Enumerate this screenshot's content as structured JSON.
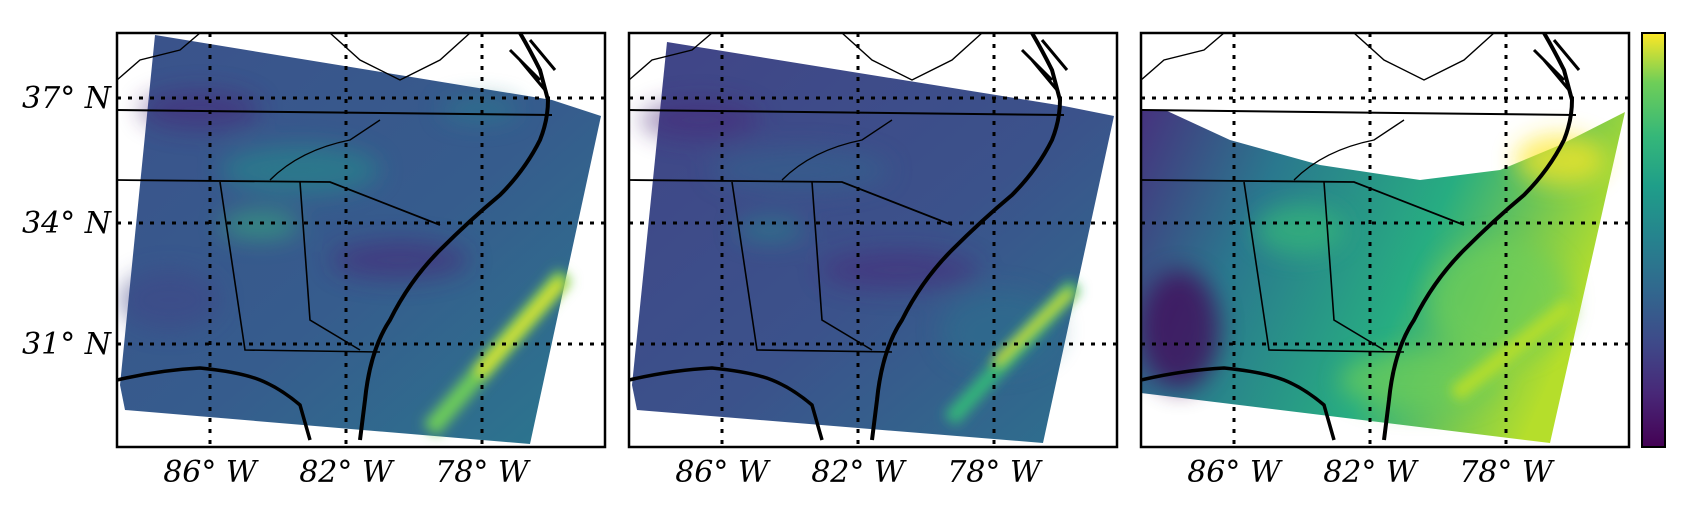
{
  "figure": {
    "panel_count": 3,
    "lat_labels": [
      "37° N",
      "34° N",
      "31° N"
    ],
    "lon_labels": [
      "86° W",
      "82° W",
      "78° W"
    ],
    "colormap": "viridis",
    "colors": {
      "viridis_low": "#440154",
      "viridis_mid": "#21918c",
      "viridis_high": "#fde725",
      "field_base_1": "#3b528b",
      "field_base_3": "#2a788e",
      "gridline": "#000000",
      "border": "#000000"
    }
  }
}
